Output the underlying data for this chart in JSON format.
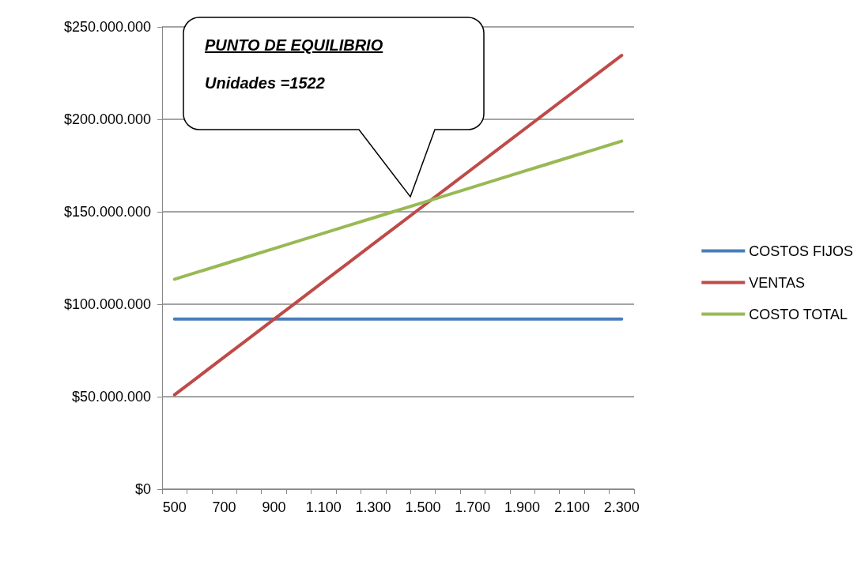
{
  "chart_data": {
    "type": "line",
    "categories": [
      "500",
      null,
      "700",
      null,
      "900",
      null,
      "1.100",
      null,
      "1.300",
      null,
      "1.500",
      null,
      "1.700",
      null,
      "1.900",
      null,
      "2.100",
      null,
      "2.300"
    ],
    "series": [
      {
        "name": "COSTOS FIJOS",
        "color": "#4a7ebb",
        "values": [
          92000000,
          92000000,
          92000000,
          92000000,
          92000000,
          92000000,
          92000000,
          92000000,
          92000000,
          92000000,
          92000000,
          92000000,
          92000000,
          92000000,
          92000000,
          92000000,
          92000000,
          92000000,
          92000000
        ]
      },
      {
        "name": "VENTAS",
        "color": "#be4b48",
        "values": [
          51000000,
          61200000,
          71400000,
          81600000,
          91800000,
          102000000,
          112200000,
          122400000,
          132600000,
          142800000,
          153000000,
          163200000,
          173400000,
          183600000,
          193800000,
          204000000,
          214200000,
          224400000,
          234600000
        ]
      },
      {
        "name": "COSTO TOTAL",
        "color": "#98b954",
        "values": [
          113500000,
          117650000,
          121800000,
          125950000,
          130100000,
          134250000,
          138400000,
          142550000,
          146700000,
          150850000,
          155000000,
          159150000,
          163300000,
          167450000,
          171600000,
          175750000,
          179900000,
          184050000,
          188200000
        ]
      }
    ],
    "ylim": [
      0,
      250000000
    ],
    "yticks": [
      {
        "value": 0,
        "label": "$0"
      },
      {
        "value": 50000000,
        "label": "$50.000.000"
      },
      {
        "value": 100000000,
        "label": "$100.000.000"
      },
      {
        "value": 150000000,
        "label": "$150.000.000"
      },
      {
        "value": 200000000,
        "label": "$200.000.000"
      },
      {
        "value": 250000000,
        "label": "$250.000.000"
      }
    ],
    "grid": "y",
    "legend": "right",
    "marker": "none",
    "line_style": "solid",
    "annotations": [
      "PUNTO DE EQUILIBRIO",
      "Unidades =1522"
    ]
  }
}
